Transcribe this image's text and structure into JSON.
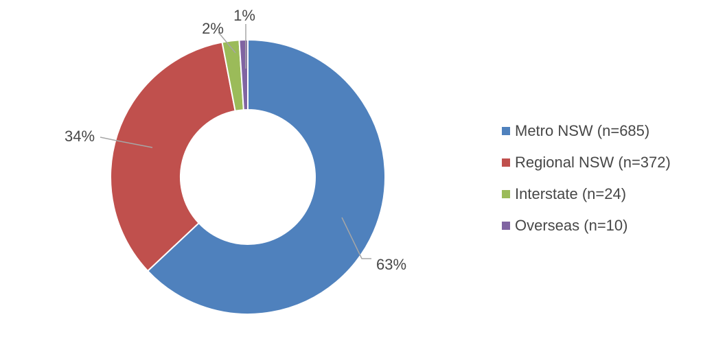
{
  "chart_data": {
    "type": "pie",
    "subtype": "donut",
    "title": "",
    "categories": [
      "Metro NSW (n=685)",
      "Regional NSW (n=372)",
      "Interstate (n=24)",
      "Overseas (n=10)"
    ],
    "series_names": [
      "Metro NSW",
      "Regional NSW",
      "Interstate",
      "Overseas"
    ],
    "counts": [
      685,
      372,
      24,
      10
    ],
    "values": [
      63,
      34,
      2,
      1
    ],
    "data_labels": [
      "63%",
      "34%",
      "2%",
      "1%"
    ],
    "colors": [
      "#4F81BD",
      "#C0504D",
      "#9BBB59",
      "#8064A2"
    ],
    "legend_position": "right",
    "direction": "clockwise",
    "start_angle_deg": 0,
    "hole_ratio": 0.49,
    "background_color": "#FFFFFF",
    "label_color": "#474747",
    "leader_line_color": "#A6A6A6",
    "slice_border_color": "#FFFFFF"
  }
}
